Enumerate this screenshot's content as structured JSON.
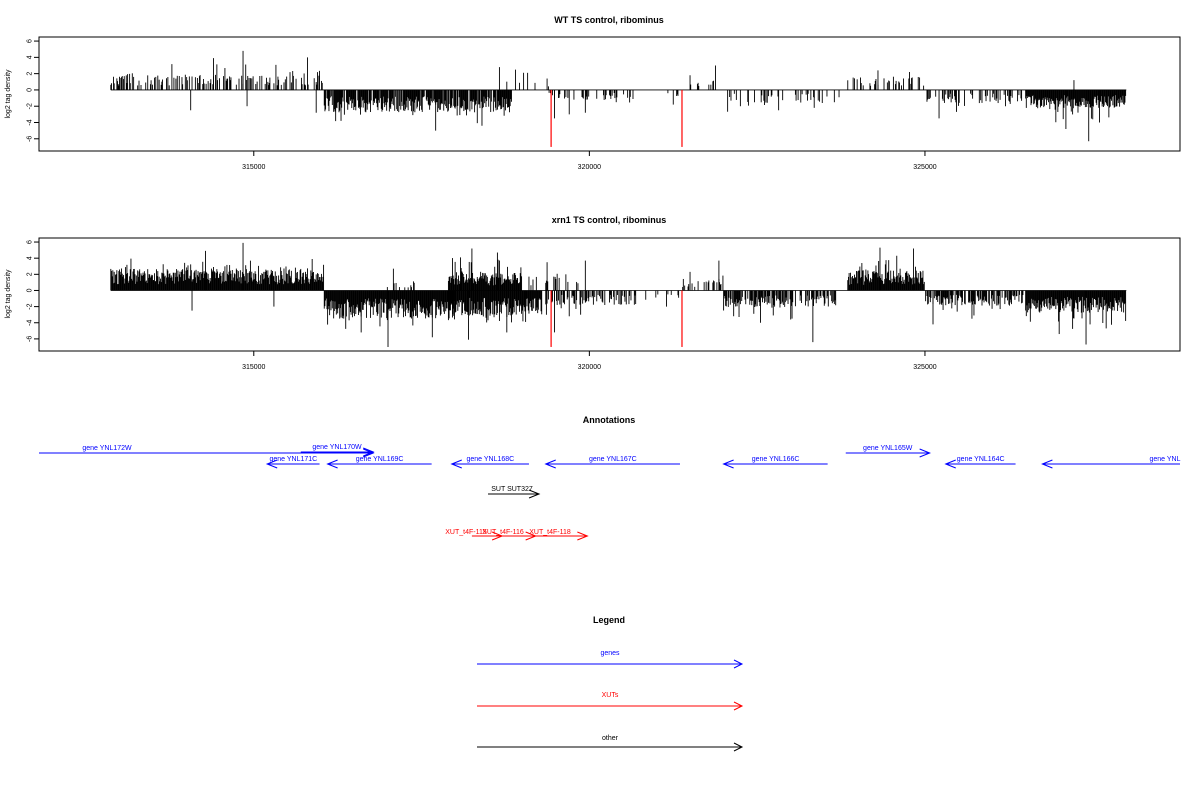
{
  "colors": {
    "bars": "#000000",
    "frame": "#000000",
    "marker": "#ff0000",
    "genes": "#0000ff",
    "xuts": "#ff0000",
    "other": "#000000"
  },
  "chart_data": [
    {
      "type": "bar",
      "title": "WT TS control, ribominus",
      "ylabel": "log2 tag density",
      "xlim": [
        311800,
        328800
      ],
      "ylim": [
        -7.5,
        6.5
      ],
      "yticks": [
        6,
        4,
        2,
        0,
        -2,
        -4,
        -6
      ],
      "ytick_labels": [
        "6",
        "4",
        "2",
        "0",
        "-2",
        "-4",
        "-6"
      ],
      "xticks": [
        315000,
        320000,
        325000
      ],
      "xtick_labels": [
        "315000",
        "320000",
        "325000"
      ],
      "grid": false,
      "markers": [
        {
          "x": 319430,
          "y": -7.0
        },
        {
          "x": 321380,
          "y": -7.0
        }
      ],
      "segments": [
        {
          "from": 312870,
          "to": 316050,
          "sign": 1,
          "mean": 1.5,
          "spread": 1.6,
          "density": 0.1,
          "peaks": [
            [
              314840,
              4.8
            ],
            [
              314400,
              3.9
            ],
            [
              315800,
              4.0
            ],
            [
              314060,
              -2.5
            ],
            [
              314900,
              -2.0
            ],
            [
              315930,
              -2.8
            ]
          ]
        },
        {
          "from": 316050,
          "to": 318850,
          "sign": -1,
          "mean": 2.2,
          "spread": 1.6,
          "density": 0.22,
          "peaks": [
            [
              317710,
              -5.0
            ],
            [
              316300,
              -3.8
            ],
            [
              318400,
              -4.4
            ]
          ]
        },
        {
          "from": 318550,
          "to": 319350,
          "sign": 1,
          "mean": 1.2,
          "spread": 1.0,
          "density": 0.02,
          "peaks": [
            [
              318660,
              2.8
            ],
            [
              318900,
              2.5
            ],
            [
              319080,
              2.1
            ]
          ]
        },
        {
          "from": 319350,
          "to": 320700,
          "sign": -1,
          "mean": 1.0,
          "spread": 1.0,
          "density": 0.08,
          "peaks": [
            [
              319480,
              -3.5
            ],
            [
              319700,
              -3.0
            ],
            [
              319940,
              -2.8
            ]
          ]
        },
        {
          "from": 319150,
          "to": 319400,
          "sign": 1,
          "mean": 1.0,
          "spread": 0.8,
          "density": 0.02,
          "peaks": [
            [
              319370,
              1.4
            ]
          ]
        },
        {
          "from": 320900,
          "to": 321380,
          "sign": -1,
          "mean": 1.0,
          "spread": 0.5,
          "density": 0.03,
          "peaks": [
            [
              321250,
              -1.8
            ]
          ]
        },
        {
          "from": 321380,
          "to": 321900,
          "sign": 1,
          "mean": 1.2,
          "spread": 1.2,
          "density": 0.03,
          "peaks": [
            [
              321500,
              1.8
            ],
            [
              321880,
              3.0
            ]
          ]
        },
        {
          "from": 321900,
          "to": 323750,
          "sign": -1,
          "mean": 1.3,
          "spread": 1.2,
          "density": 0.05,
          "peaks": [
            [
              322820,
              -2.5
            ],
            [
              322250,
              -2.0
            ],
            [
              323350,
              -2.2
            ]
          ]
        },
        {
          "from": 323850,
          "to": 325000,
          "sign": 1,
          "mean": 1.3,
          "spread": 1.0,
          "density": 0.06,
          "peaks": [
            [
              324300,
              2.4
            ],
            [
              324770,
              2.2
            ]
          ]
        },
        {
          "from": 325000,
          "to": 326500,
          "sign": -1,
          "mean": 1.3,
          "spread": 1.2,
          "density": 0.07,
          "peaks": [
            [
              325210,
              -3.5
            ],
            [
              326200,
              -2.0
            ]
          ]
        },
        {
          "from": 326500,
          "to": 328000,
          "sign": -1,
          "mean": 1.8,
          "spread": 2.0,
          "density": 0.25,
          "peaks": [
            [
              327440,
              -6.3
            ],
            [
              327100,
              -4.8
            ],
            [
              327600,
              -4.0
            ]
          ]
        },
        {
          "from": 327000,
          "to": 327300,
          "sign": 1,
          "mean": 1.2,
          "spread": 0.6,
          "density": 0.01,
          "peaks": [
            [
              327220,
              1.2
            ]
          ]
        }
      ]
    },
    {
      "type": "bar",
      "title": "xrn1 TS control, ribominus",
      "ylabel": "log2 tag density",
      "xlim": [
        311800,
        328800
      ],
      "ylim": [
        -7.5,
        6.5
      ],
      "yticks": [
        6,
        4,
        2,
        0,
        -2,
        -4,
        -6
      ],
      "ytick_labels": [
        "6",
        "4",
        "2",
        "0",
        "-2",
        "-4",
        "-6"
      ],
      "xticks": [
        315000,
        320000,
        325000
      ],
      "xtick_labels": [
        "315000",
        "320000",
        "325000"
      ],
      "grid": false,
      "markers": [
        {
          "x": 319430,
          "y": -7.0
        },
        {
          "x": 321380,
          "y": -7.0
        }
      ],
      "segments": [
        {
          "from": 312870,
          "to": 316050,
          "sign": 1,
          "mean": 2.2,
          "spread": 1.6,
          "density": 0.45,
          "peaks": [
            [
              314840,
              5.9
            ],
            [
              314280,
              4.9
            ],
            [
              315870,
              3.9
            ],
            [
              314080,
              -2.5
            ],
            [
              315300,
              -2.0
            ]
          ]
        },
        {
          "from": 316050,
          "to": 318000,
          "sign": -1,
          "mean": 2.8,
          "spread": 2.0,
          "density": 0.45,
          "peaks": [
            [
              317000,
              -7.0
            ],
            [
              317660,
              -5.8
            ],
            [
              316600,
              -5.2
            ]
          ]
        },
        {
          "from": 316900,
          "to": 317400,
          "sign": 1,
          "mean": 1.0,
          "spread": 1.2,
          "density": 0.06,
          "peaks": [
            [
              317080,
              2.7
            ]
          ]
        },
        {
          "from": 317900,
          "to": 319000,
          "sign": 1,
          "mean": 1.8,
          "spread": 2.0,
          "density": 0.25,
          "peaks": [
            [
              318250,
              5.2
            ],
            [
              318630,
              4.7
            ],
            [
              318080,
              4.1
            ]
          ]
        },
        {
          "from": 317900,
          "to": 319300,
          "sign": -1,
          "mean": 2.5,
          "spread": 2.0,
          "density": 0.4,
          "peaks": [
            [
              318200,
              -6.1
            ],
            [
              318770,
              -5.2
            ],
            [
              319050,
              -3.9
            ]
          ]
        },
        {
          "from": 319100,
          "to": 319700,
          "sign": 1,
          "mean": 1.5,
          "spread": 1.5,
          "density": 0.05,
          "peaks": [
            [
              319370,
              3.5
            ],
            [
              319650,
              2.0
            ]
          ]
        },
        {
          "from": 319350,
          "to": 320700,
          "sign": -1,
          "mean": 1.5,
          "spread": 1.5,
          "density": 0.12,
          "peaks": [
            [
              319480,
              -5.2
            ],
            [
              319700,
              -3.2
            ]
          ]
        },
        {
          "from": 319800,
          "to": 320000,
          "sign": 1,
          "mean": 1.0,
          "spread": 1.0,
          "density": 0.02,
          "peaks": [
            [
              319940,
              3.7
            ]
          ]
        },
        {
          "from": 320800,
          "to": 321380,
          "sign": -1,
          "mean": 1.0,
          "spread": 0.8,
          "density": 0.04,
          "peaks": [
            [
              321150,
              -2.0
            ]
          ]
        },
        {
          "from": 321380,
          "to": 322000,
          "sign": 1,
          "mean": 1.2,
          "spread": 1.5,
          "density": 0.05,
          "peaks": [
            [
              321500,
              2.3
            ],
            [
              321930,
              3.7
            ]
          ]
        },
        {
          "from": 322000,
          "to": 323700,
          "sign": -1,
          "mean": 1.7,
          "spread": 1.6,
          "density": 0.18,
          "peaks": [
            [
              323330,
              -6.4
            ],
            [
              322550,
              -4.0
            ],
            [
              323000,
              -3.6
            ]
          ]
        },
        {
          "from": 323850,
          "to": 325000,
          "sign": 1,
          "mean": 2.0,
          "spread": 1.8,
          "density": 0.3,
          "peaks": [
            [
              324330,
              5.3
            ],
            [
              324830,
              5.2
            ],
            [
              324580,
              4.3
            ]
          ]
        },
        {
          "from": 325000,
          "to": 326500,
          "sign": -1,
          "mean": 1.5,
          "spread": 1.6,
          "density": 0.18,
          "peaks": [
            [
              325120,
              -4.2
            ],
            [
              325700,
              -3.5
            ]
          ]
        },
        {
          "from": 326500,
          "to": 328000,
          "sign": -1,
          "mean": 2.2,
          "spread": 2.2,
          "density": 0.4,
          "peaks": [
            [
              327400,
              -6.7
            ],
            [
              327000,
              -5.4
            ],
            [
              327700,
              -4.7
            ]
          ]
        }
      ]
    }
  ],
  "annotations": {
    "title": "Annotations",
    "genes": [
      {
        "label": "gene YNL172W",
        "start": 311800,
        "end": 316780,
        "strand": "+",
        "row": 1
      },
      {
        "label": "gene YNL170W",
        "start": 315700,
        "end": 316780,
        "strand": "+",
        "row": 0
      },
      {
        "label": "gene YNL171C",
        "start": 315200,
        "end": 315980,
        "strand": "-",
        "row": 2
      },
      {
        "label": "gene YNL169C",
        "start": 316100,
        "end": 317650,
        "strand": "-",
        "row": 2
      },
      {
        "label": "gene YNL168C",
        "start": 317950,
        "end": 319100,
        "strand": "-",
        "row": 2
      },
      {
        "label": "gene YNL167C",
        "start": 319350,
        "end": 321350,
        "strand": "-",
        "row": 2
      },
      {
        "label": "gene YNL166C",
        "start": 322000,
        "end": 323550,
        "strand": "-",
        "row": 2
      },
      {
        "label": "gene YNL165W",
        "start": 323820,
        "end": 325070,
        "strand": "+",
        "row": 1
      },
      {
        "label": "gene YNL164C",
        "start": 325310,
        "end": 326350,
        "strand": "-",
        "row": 2
      },
      {
        "label": "gene YNL",
        "start": 326750,
        "end": 328800,
        "strand": "-",
        "row": 2
      }
    ],
    "other": [
      {
        "label": "SUT SUT327",
        "start": 318490,
        "end": 319250,
        "strand": "+"
      }
    ],
    "xuts": [
      {
        "label": "XUT_t4F-115",
        "start": 318250,
        "end": 318700,
        "strand": "+"
      },
      {
        "label": "XUT_t4F-116",
        "start": 318700,
        "end": 319200,
        "strand": "+"
      },
      {
        "label": "XUT_t4F-118",
        "start": 319200,
        "end": 319970,
        "strand": "+"
      }
    ]
  },
  "legend": {
    "title": "Legend",
    "items": [
      {
        "label": "genes",
        "color_key": "genes"
      },
      {
        "label": "XUTs",
        "color_key": "xuts"
      },
      {
        "label": "other",
        "color_key": "other"
      }
    ]
  }
}
